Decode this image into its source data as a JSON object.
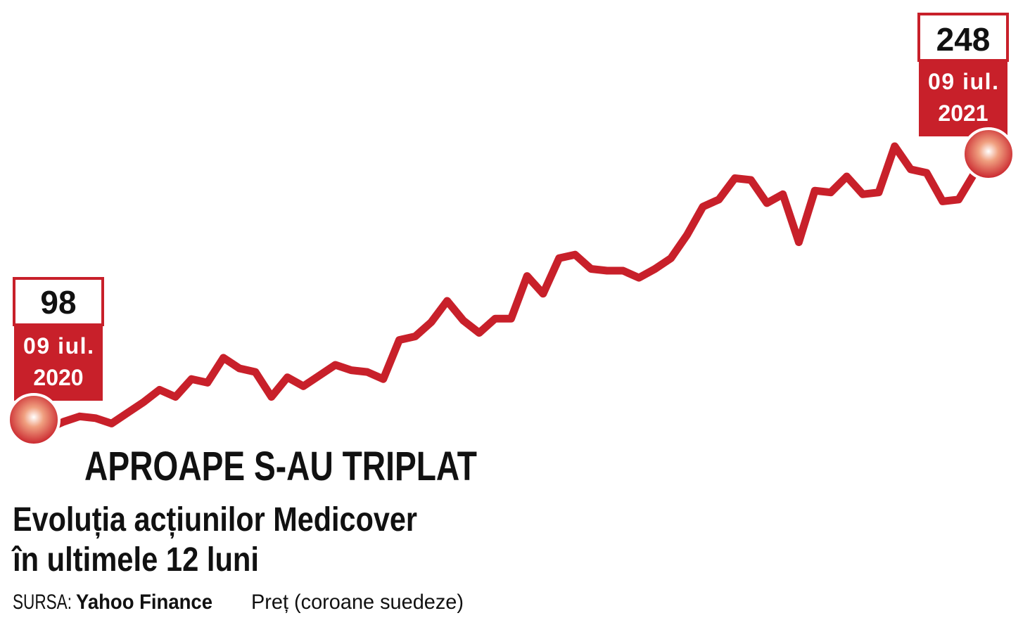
{
  "chart_data": {
    "type": "line",
    "title": "APROAPE S-AU TRIPLAT",
    "subtitle": [
      "Evoluția acțiunilor Medicover",
      "în ultimele 12 luni"
    ],
    "source_label": "SURSA:",
    "source": "Yahoo Finance",
    "unit_label": "Preț (coroane suedeze)",
    "color": "#c8202a",
    "values": [
      98,
      94,
      98,
      101,
      100,
      97,
      103,
      109,
      116,
      112,
      122,
      120,
      134,
      128,
      126,
      112,
      123,
      118,
      124,
      130,
      127,
      126,
      122,
      144,
      146,
      154,
      166,
      155,
      148,
      156,
      156,
      180,
      170,
      190,
      192,
      184,
      183,
      183,
      179,
      184,
      190,
      203,
      219,
      223,
      235,
      234,
      221,
      226,
      199,
      228,
      227,
      236,
      226,
      227,
      253,
      240,
      238,
      222,
      223,
      238,
      248
    ],
    "start_annotation": {
      "date": "09 iul.",
      "year": "2020"
    },
    "end_annotation": {
      "date": "09 iul.",
      "year": "2021"
    }
  }
}
